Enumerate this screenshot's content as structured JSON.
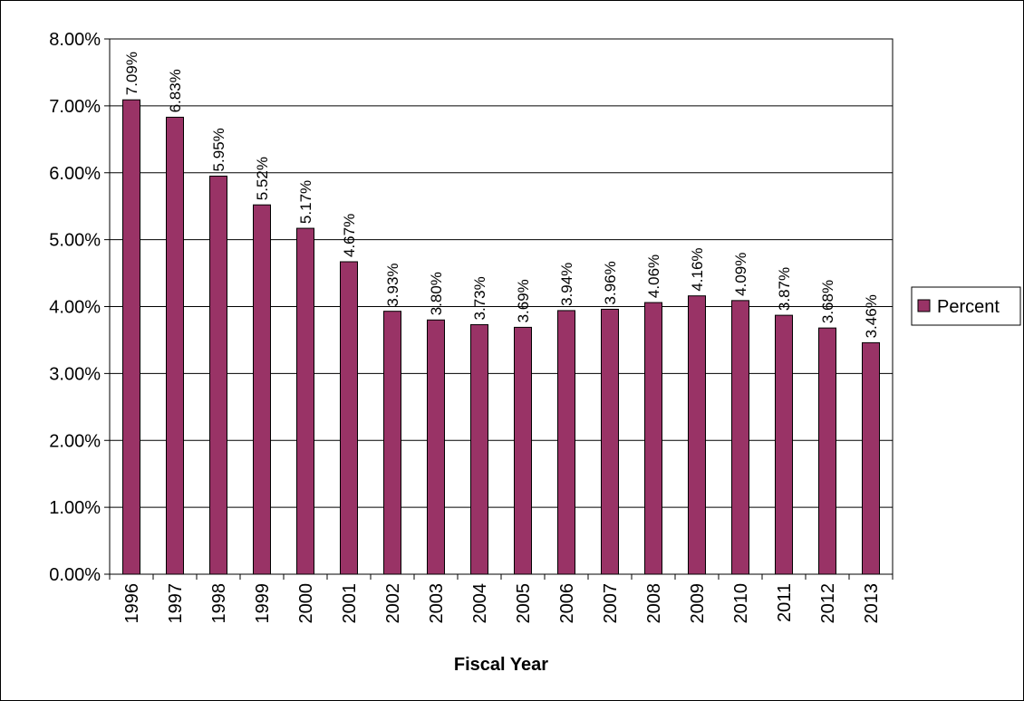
{
  "chart_data": {
    "type": "bar",
    "title": "",
    "xlabel": "Fiscal Year",
    "ylabel": "",
    "categories": [
      "1996",
      "1997",
      "1998",
      "1999",
      "2000",
      "2001",
      "2002",
      "2003",
      "2004",
      "2005",
      "2006",
      "2007",
      "2008",
      "2009",
      "2010",
      "2011",
      "2012",
      "2013"
    ],
    "series": [
      {
        "name": "Percent",
        "color": "#993366",
        "values": [
          7.09,
          6.83,
          5.95,
          5.52,
          5.17,
          4.67,
          3.93,
          3.8,
          3.73,
          3.69,
          3.94,
          3.96,
          4.06,
          4.16,
          4.09,
          3.87,
          3.68,
          3.46
        ],
        "labels": [
          "7.09%",
          "6.83%",
          "5.95%",
          "5.52%",
          "5.17%",
          "4.67%",
          "3.93%",
          "3.80%",
          "3.73%",
          "3.69%",
          "3.94%",
          "3.96%",
          "4.06%",
          "4.16%",
          "4.09%",
          "3.87%",
          "3.68%",
          "3.46%"
        ]
      }
    ],
    "ylim": [
      0,
      8
    ],
    "yticks": [
      0,
      1,
      2,
      3,
      4,
      5,
      6,
      7,
      8
    ],
    "ytick_labels": [
      "0.00%",
      "1.00%",
      "2.00%",
      "3.00%",
      "4.00%",
      "5.00%",
      "6.00%",
      "7.00%",
      "8.00%"
    ],
    "grid": true,
    "legend_position": "right"
  }
}
